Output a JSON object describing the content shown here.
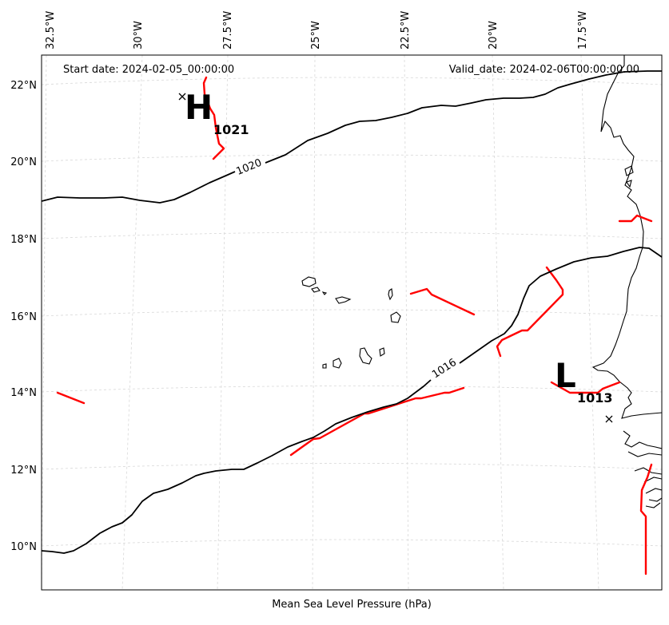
{
  "header": {
    "start_date": "Start date: 2024-02-05_00:00:00",
    "valid_date": "Valid_date: 2024-02-06T00:00:00.00"
  },
  "axes": {
    "xlabel": "Mean Sea Level Pressure (hPa)",
    "lon_ticks": [
      "32.5°W",
      "30°W",
      "27.5°W",
      "25°W",
      "22.5°W",
      "20°W",
      "17.5°W"
    ],
    "lat_ticks": [
      "22°N",
      "20°N",
      "18°N",
      "16°N",
      "14°N",
      "12°N",
      "10°N"
    ]
  },
  "isobars": [
    {
      "label": "1020"
    },
    {
      "label": "1016"
    }
  ],
  "pressure_systems": [
    {
      "letter": "H",
      "value": "1021"
    },
    {
      "letter": "L",
      "value": "1013"
    }
  ],
  "colors": {
    "isobar": "#000000",
    "trough": "#ff0000",
    "grid": "#cccccc",
    "coast": "#000000"
  }
}
